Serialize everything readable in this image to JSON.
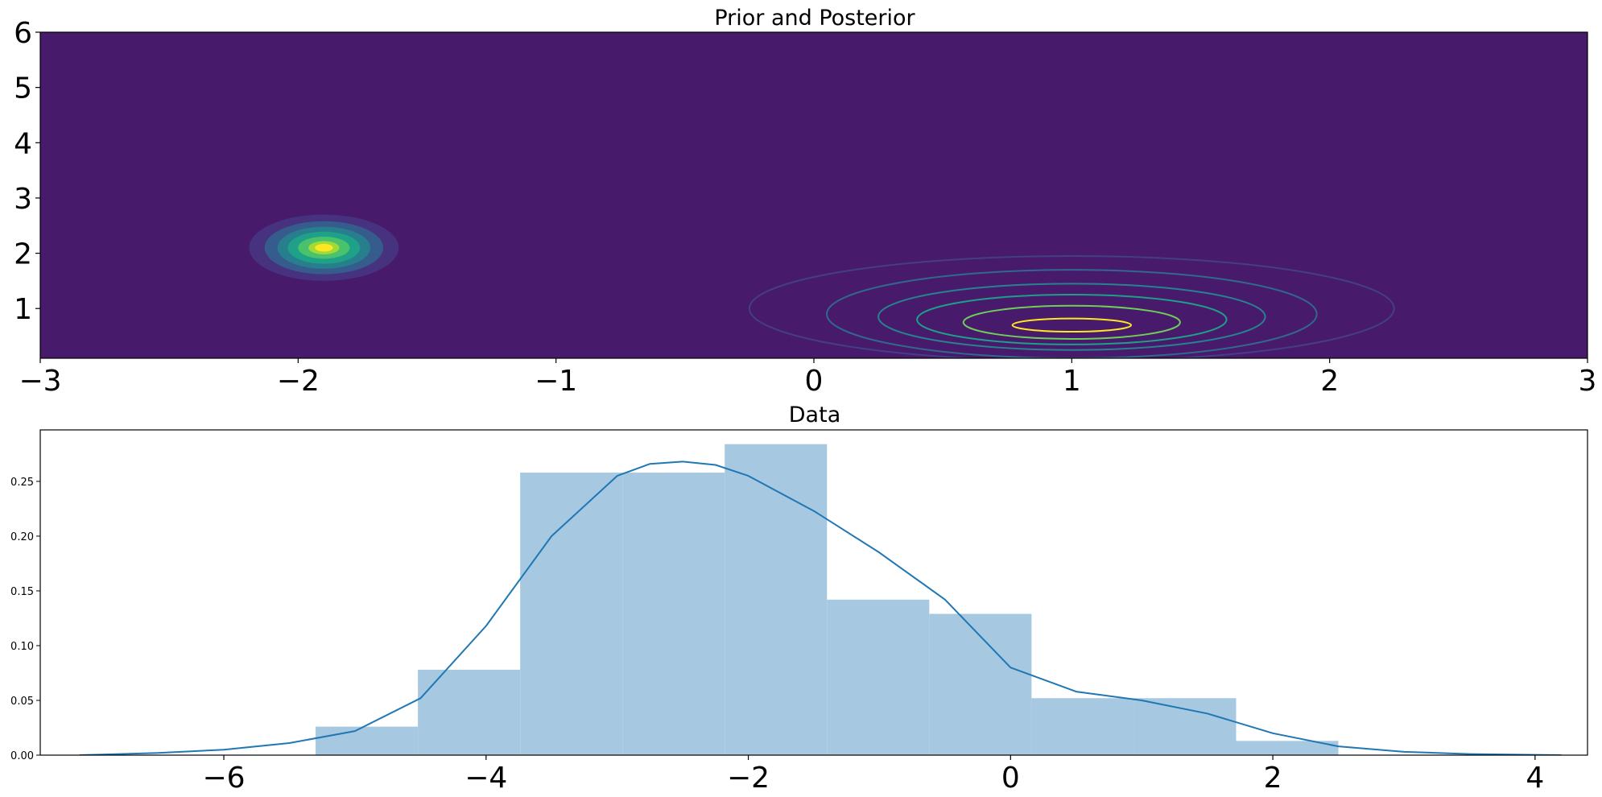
{
  "chart_data": [
    {
      "type": "heatmap",
      "title": "Prior and Posterior",
      "xlim": [
        -3,
        3
      ],
      "ylim": [
        0.1,
        6
      ],
      "x_ticks": [
        -3,
        -2,
        -1,
        0,
        1,
        2,
        3
      ],
      "x_tick_labels": [
        "−3",
        "−2",
        "−1",
        "0",
        "1",
        "2",
        "3"
      ],
      "y_ticks": [
        1,
        2,
        3,
        4,
        5,
        6
      ],
      "y_tick_labels": [
        "1",
        "2",
        "3",
        "4",
        "5",
        "6"
      ],
      "background_color": "#481a6c",
      "filled_contours": {
        "description": "posterior density (filled)",
        "center": [
          -1.9,
          2.1
        ],
        "levels": [
          {
            "rx": 0.29,
            "ry": 0.6,
            "color": "#46327e"
          },
          {
            "rx": 0.23,
            "ry": 0.48,
            "color": "#365c8d"
          },
          {
            "rx": 0.18,
            "ry": 0.38,
            "color": "#277f8e"
          },
          {
            "rx": 0.14,
            "ry": 0.29,
            "color": "#1fa187"
          },
          {
            "rx": 0.1,
            "ry": 0.2,
            "color": "#4ac16d"
          },
          {
            "rx": 0.06,
            "ry": 0.12,
            "color": "#a0da39"
          },
          {
            "rx": 0.035,
            "ry": 0.07,
            "color": "#fde725"
          }
        ]
      },
      "line_contours": {
        "description": "prior density (lines)",
        "levels": [
          {
            "cx": 1.0,
            "cy": 1.0,
            "rx": 1.25,
            "ry": 0.95,
            "color": "#433e85"
          },
          {
            "cx": 1.0,
            "cy": 0.9,
            "rx": 0.95,
            "ry": 0.8,
            "color": "#31688e"
          },
          {
            "cx": 1.0,
            "cy": 0.85,
            "rx": 0.75,
            "ry": 0.6,
            "color": "#26828e"
          },
          {
            "cx": 1.0,
            "cy": 0.8,
            "rx": 0.6,
            "ry": 0.45,
            "color": "#1f9e89"
          },
          {
            "cx": 1.0,
            "cy": 0.75,
            "rx": 0.42,
            "ry": 0.3,
            "color": "#6ece58"
          },
          {
            "cx": 1.0,
            "cy": 0.7,
            "rx": 0.23,
            "ry": 0.12,
            "color": "#fde725"
          }
        ]
      }
    },
    {
      "type": "bar",
      "title": "Data",
      "xlim": [
        -7.4,
        4.4
      ],
      "ylim": [
        0,
        0.297
      ],
      "x_ticks": [
        -6,
        -4,
        -2,
        0,
        2,
        4
      ],
      "x_tick_labels": [
        "−6",
        "−4",
        "−2",
        "0",
        "2",
        "4"
      ],
      "y_ticks": [
        0,
        0.05,
        0.1,
        0.15,
        0.2,
        0.25
      ],
      "y_tick_labels": [
        "0.00",
        "0.05",
        "0.10",
        "0.15",
        "0.20",
        "0.25"
      ],
      "bar_color": "#a6c8e0",
      "bins": [
        {
          "x0": -5.3,
          "x1": -4.52,
          "value": 0.026
        },
        {
          "x0": -4.52,
          "x1": -3.74,
          "value": 0.078
        },
        {
          "x0": -3.74,
          "x1": -2.96,
          "value": 0.258
        },
        {
          "x0": -2.96,
          "x1": -2.18,
          "value": 0.258
        },
        {
          "x0": -2.18,
          "x1": -1.4,
          "value": 0.284
        },
        {
          "x0": -1.4,
          "x1": -0.62,
          "value": 0.142
        },
        {
          "x0": -0.62,
          "x1": 0.16,
          "value": 0.129
        },
        {
          "x0": 0.16,
          "x1": 0.94,
          "value": 0.052
        },
        {
          "x0": 0.94,
          "x1": 1.72,
          "value": 0.052
        },
        {
          "x0": 1.72,
          "x1": 2.5,
          "value": 0.013
        }
      ],
      "kde": {
        "color": "#1f77b4",
        "x": [
          -7.1,
          -6.5,
          -6.0,
          -5.5,
          -5.0,
          -4.5,
          -4.0,
          -3.5,
          -3.0,
          -2.75,
          -2.5,
          -2.25,
          -2.0,
          -1.5,
          -1.0,
          -0.5,
          0.0,
          0.5,
          1.0,
          1.5,
          2.0,
          2.5,
          3.0,
          3.5,
          4.2
        ],
        "y": [
          0.0,
          0.002,
          0.005,
          0.011,
          0.022,
          0.052,
          0.118,
          0.2,
          0.255,
          0.266,
          0.268,
          0.265,
          0.255,
          0.223,
          0.185,
          0.142,
          0.08,
          0.058,
          0.05,
          0.038,
          0.02,
          0.008,
          0.003,
          0.001,
          0.0
        ]
      }
    }
  ]
}
